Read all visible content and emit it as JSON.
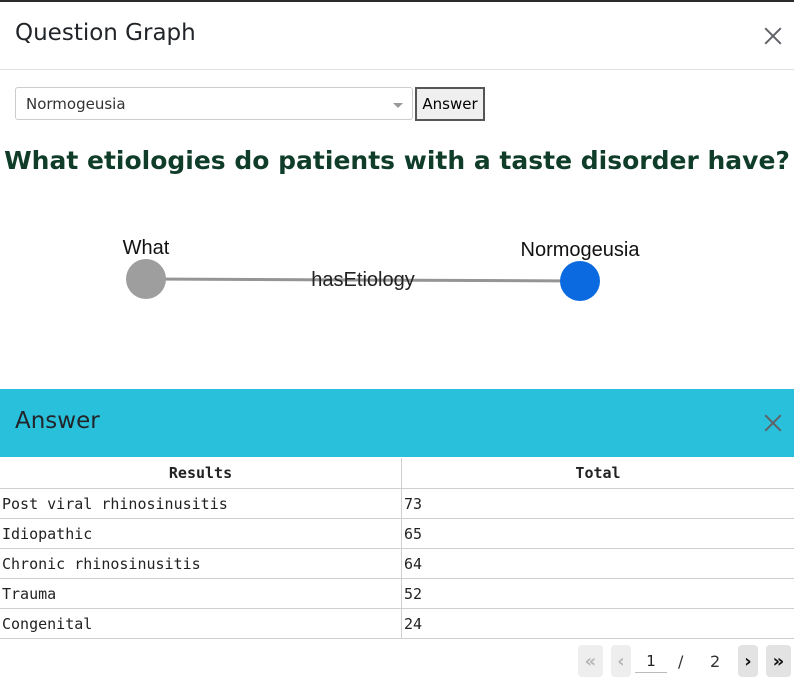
{
  "modal": {
    "title": "Question Graph"
  },
  "selector": {
    "value": "Normogeusia",
    "button_label": "Answer"
  },
  "question": "What etiologies do patients with a taste disorder have?",
  "graph": {
    "nodes": [
      {
        "label": "What",
        "color": "#9e9e9e"
      },
      {
        "label": "Normogeusia",
        "color": "#0b6ae0"
      }
    ],
    "edge_label": "hasEtiology"
  },
  "answer": {
    "title": "Answer",
    "header_color": "#29c0dc",
    "columns": [
      "Results",
      "Total"
    ],
    "rows": [
      [
        "Post viral rhinosinusitis",
        "73"
      ],
      [
        "Idiopathic",
        "65"
      ],
      [
        "Chronic rhinosinusitis",
        "64"
      ],
      [
        "Trauma",
        "52"
      ],
      [
        "Congenital",
        "24"
      ]
    ]
  },
  "pagination": {
    "current": "1",
    "separator": "/",
    "total": "2"
  }
}
